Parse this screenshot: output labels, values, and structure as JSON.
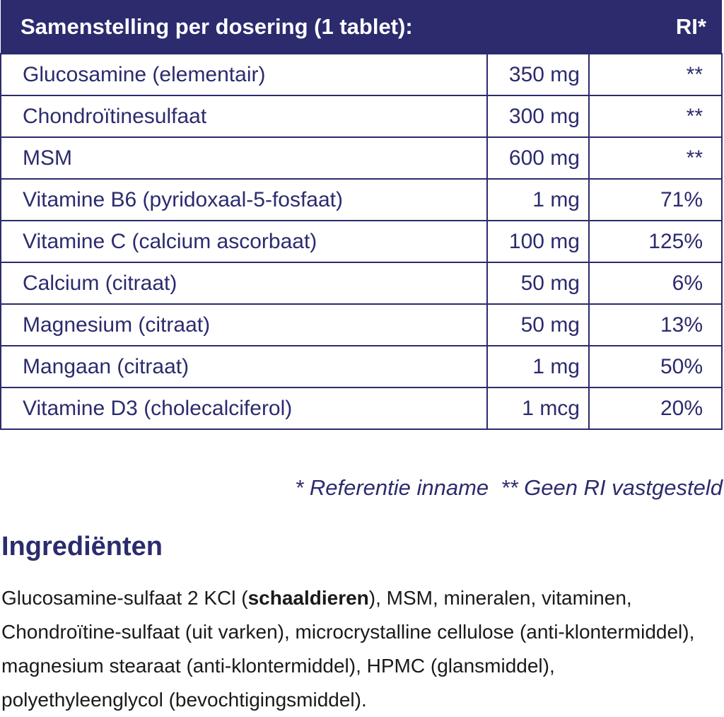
{
  "header": {
    "title": "Samenstelling per dosering (1 tablet):",
    "ri": "RI*"
  },
  "table": {
    "rows": [
      [
        "Glucosamine (elementair)",
        "350 mg",
        "**"
      ],
      [
        "Chondroïtinesulfaat",
        "300 mg",
        "**"
      ],
      [
        "MSM",
        "600 mg",
        "**"
      ],
      [
        "Vitamine B6 (pyridoxaal-5-fosfaat)",
        "1 mg",
        "71%"
      ],
      [
        "Vitamine C (calcium ascorbaat)",
        "100 mg",
        "125%"
      ],
      [
        "Calcium (citraat)",
        "50 mg",
        "6%"
      ],
      [
        "Magnesium (citraat)",
        "50 mg",
        "13%"
      ],
      [
        "Mangaan (citraat)",
        "1 mg",
        "50%"
      ],
      [
        "Vitamine D3 (cholecalciferol)",
        "1 mcg",
        "20%"
      ]
    ]
  },
  "footnote": "* Referentie inname  ** Geen RI vastgesteld",
  "ingredients": {
    "title": "Ingrediënten",
    "text": [
      "Glucosamine-sulfaat 2 KCl (",
      "schaaldieren",
      "), MSM, mineralen, vitaminen, Chondroïtine-sulfaat (uit varken), microcrystalline cellulose (anti-klontermiddel), magnesium stearaat (anti-klontermiddel), HPMC (glansmiddel), polyethyleenglycol (bevochtigingsmiddel)."
    ]
  }
}
